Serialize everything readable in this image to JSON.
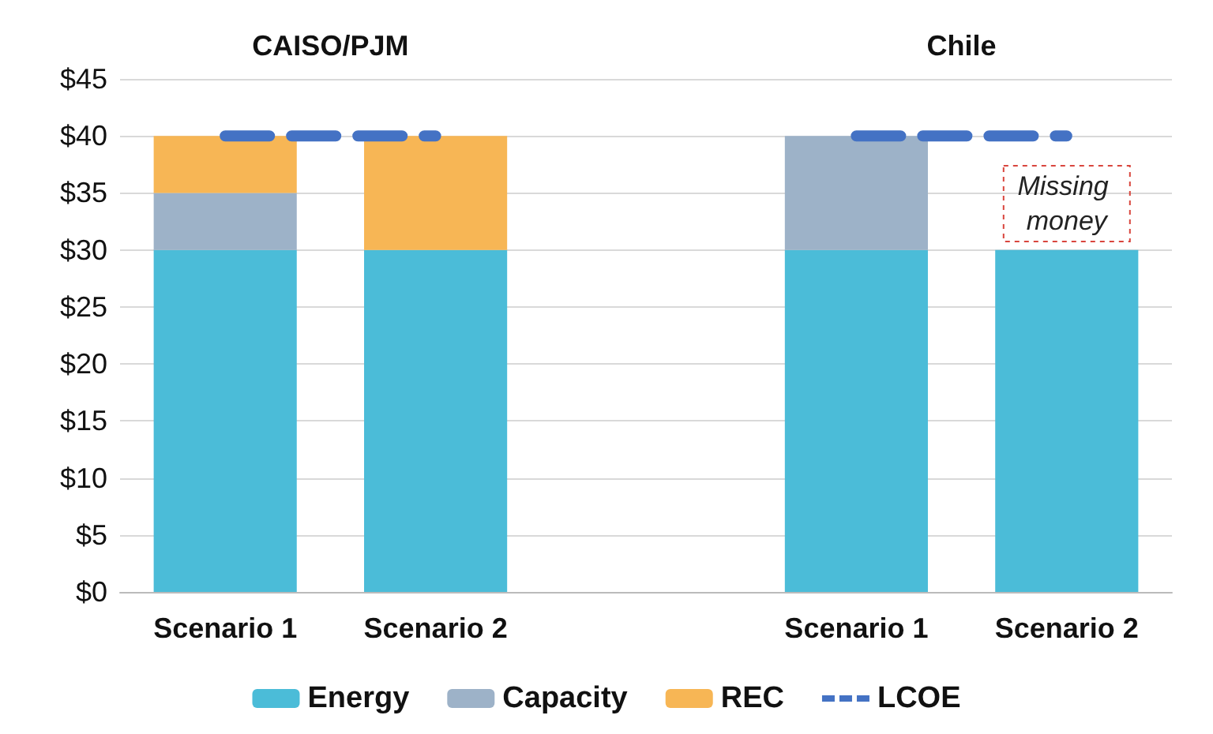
{
  "chart_data": {
    "type": "bar",
    "stacked": true,
    "categories": [
      "Scenario 1",
      "Scenario 2",
      null,
      "Scenario 1",
      "Scenario 2"
    ],
    "series": [
      {
        "name": "Energy",
        "color": "#4bbcd8",
        "values": [
          30,
          30,
          null,
          30,
          30
        ]
      },
      {
        "name": "Capacity",
        "color": "#9db2c8",
        "values": [
          5,
          0,
          null,
          10,
          0
        ]
      },
      {
        "name": "REC",
        "color": "#f7b655",
        "values": [
          5,
          10,
          null,
          0,
          0
        ]
      },
      {
        "name": "LCOE",
        "type": "line",
        "color": "#4472c4",
        "line_style": "dashed",
        "values": [
          40,
          40,
          null,
          40,
          40
        ]
      }
    ],
    "ylim": [
      0,
      45
    ],
    "yticks": [
      {
        "value": 0,
        "label": "$0"
      },
      {
        "value": 5,
        "label": "$5"
      },
      {
        "value": 10,
        "label": "$10"
      },
      {
        "value": 15,
        "label": "$15"
      },
      {
        "value": 20,
        "label": "$20"
      },
      {
        "value": 25,
        "label": "$25"
      },
      {
        "value": 30,
        "label": "$30"
      },
      {
        "value": 35,
        "label": "$35"
      },
      {
        "value": 40,
        "label": "$40"
      },
      {
        "value": 45,
        "label": "$45"
      }
    ],
    "grid": "y",
    "legend": "bottom",
    "annotations": [
      "CAISO/PJM",
      "Chile",
      "Missing money"
    ]
  }
}
